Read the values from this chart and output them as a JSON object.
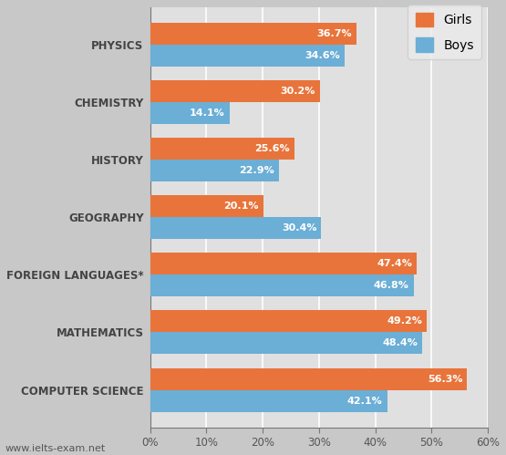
{
  "categories": [
    "COMPUTER SCIENCE",
    "MATHEMATICS",
    "FOREIGN LANGUAGES*",
    "GEOGRAPHY",
    "HISTORY",
    "CHEMISTRY",
    "PHYSICS"
  ],
  "girls": [
    56.3,
    49.2,
    47.4,
    20.1,
    25.6,
    30.2,
    36.7
  ],
  "boys": [
    42.1,
    48.4,
    46.8,
    30.4,
    22.9,
    14.1,
    34.6
  ],
  "girls_color": "#E8743B",
  "boys_color": "#6BAED6",
  "bar_height": 0.38,
  "xlim": [
    0,
    60
  ],
  "xticks": [
    0,
    10,
    20,
    30,
    40,
    50,
    60
  ],
  "xtick_labels": [
    "0%",
    "10%",
    "20%",
    "30%",
    "40%",
    "50%",
    "60%"
  ],
  "legend_girls": "Girls",
  "legend_boys": "Boys",
  "label_fontsize": 8,
  "tick_fontsize": 8.5,
  "fig_bg": "#C8C8C8",
  "ax_bg": "#E0E0E0",
  "grid_color": "#FFFFFF",
  "watermark": "www.ielts-exam.net"
}
